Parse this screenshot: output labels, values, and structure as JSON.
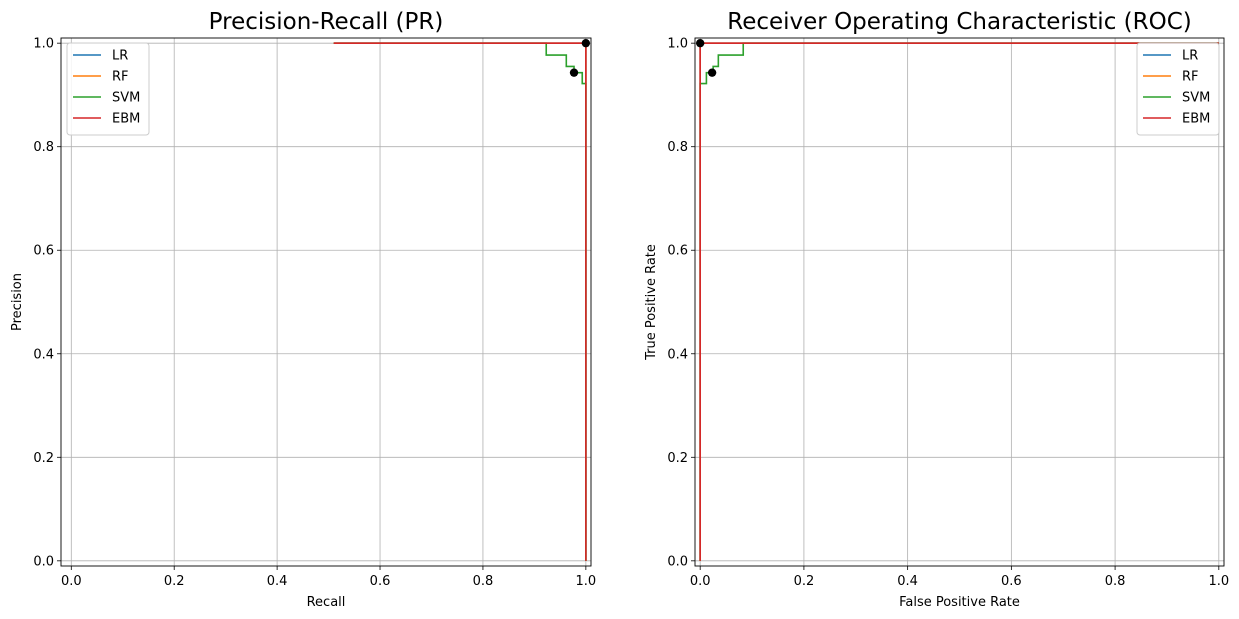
{
  "chart_data": [
    {
      "type": "line",
      "title": "Precision-Recall (PR)",
      "xlabel": "Recall",
      "ylabel": "Precision",
      "xlim": [
        -0.02,
        1.01
      ],
      "ylim": [
        -0.01,
        1.01
      ],
      "xticks": [
        "0.0",
        "0.2",
        "0.4",
        "0.6",
        "0.8",
        "1.0"
      ],
      "yticks": [
        "0.0",
        "0.2",
        "0.4",
        "0.6",
        "0.8",
        "1.0"
      ],
      "grid": true,
      "legend_position": "top-left",
      "series": [
        {
          "name": "LR",
          "color": "#1f77b4",
          "x": [
            0.51,
            1.0,
            1.0
          ],
          "y": [
            1.0,
            1.0,
            0.0
          ]
        },
        {
          "name": "RF",
          "color": "#ff7f0e",
          "x": [
            0.51,
            1.0,
            1.0
          ],
          "y": [
            1.0,
            1.0,
            0.0
          ]
        },
        {
          "name": "SVM",
          "color": "#2ca02c",
          "x": [
            0.51,
            0.923,
            0.923,
            0.962,
            0.962,
            0.977,
            0.977,
            0.993,
            0.993,
            1.0,
            1.0
          ],
          "y": [
            1.0,
            1.0,
            0.977,
            0.977,
            0.955,
            0.955,
            0.943,
            0.943,
            0.922,
            0.922,
            0.0
          ]
        },
        {
          "name": "EBM",
          "color": "#d62728",
          "x": [
            0.51,
            1.0,
            1.0
          ],
          "y": [
            1.0,
            1.0,
            0.0
          ]
        }
      ],
      "markers": [
        {
          "x": 1.0,
          "y": 1.0
        },
        {
          "x": 0.977,
          "y": 0.943
        }
      ]
    },
    {
      "type": "line",
      "title": "Receiver Operating Characteristic (ROC)",
      "xlabel": "False Positive Rate",
      "ylabel": "True Positive Rate",
      "xlim": [
        -0.01,
        1.01
      ],
      "ylim": [
        -0.01,
        1.01
      ],
      "xticks": [
        "0.0",
        "0.2",
        "0.4",
        "0.6",
        "0.8",
        "1.0"
      ],
      "yticks": [
        "0.0",
        "0.2",
        "0.4",
        "0.6",
        "0.8",
        "1.0"
      ],
      "grid": true,
      "legend_position": "top-right",
      "series": [
        {
          "name": "LR",
          "color": "#1f77b4",
          "x": [
            0.0,
            0.0,
            1.0
          ],
          "y": [
            0.0,
            1.0,
            1.0
          ]
        },
        {
          "name": "RF",
          "color": "#ff7f0e",
          "x": [
            0.0,
            0.0,
            1.0
          ],
          "y": [
            0.0,
            1.0,
            1.0
          ]
        },
        {
          "name": "SVM",
          "color": "#2ca02c",
          "x": [
            0.0,
            0.0,
            0.012,
            0.012,
            0.025,
            0.025,
            0.035,
            0.035,
            0.083,
            0.083,
            1.0
          ],
          "y": [
            0.0,
            0.922,
            0.922,
            0.943,
            0.943,
            0.955,
            0.955,
            0.977,
            0.977,
            1.0,
            1.0
          ]
        },
        {
          "name": "EBM",
          "color": "#d62728",
          "x": [
            0.0,
            0.0,
            1.0
          ],
          "y": [
            0.0,
            1.0,
            1.0
          ]
        }
      ],
      "markers": [
        {
          "x": 0.0,
          "y": 1.0
        },
        {
          "x": 0.023,
          "y": 0.943
        }
      ]
    }
  ]
}
